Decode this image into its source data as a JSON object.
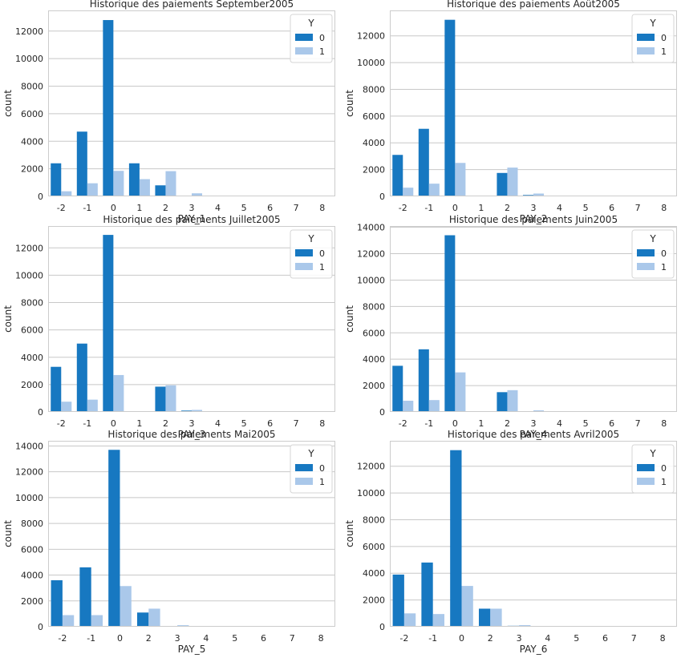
{
  "colors": {
    "class0": "#1778c1",
    "class1": "#aac8ea",
    "grid": "#c8c8c8",
    "frame": "#cccccc"
  },
  "chart_data": [
    {
      "type": "bar",
      "title": "Historique des paiements September2005",
      "xlabel": "PAY_1",
      "ylabel": "count",
      "categories": [
        "-2",
        "-1",
        "0",
        "1",
        "2",
        "3",
        "4",
        "5",
        "6",
        "7",
        "8"
      ],
      "series": [
        {
          "name": "0",
          "values": [
            2400,
            4700,
            12800,
            2400,
            800,
            30,
            10,
            5,
            5,
            5,
            5
          ]
        },
        {
          "name": "1",
          "values": [
            370,
            950,
            1850,
            1250,
            1830,
            220,
            50,
            10,
            5,
            5,
            5
          ]
        }
      ],
      "ylim": [
        0,
        13500
      ],
      "yticks": [
        0,
        2000,
        4000,
        6000,
        8000,
        10000,
        12000
      ],
      "legend": {
        "title": "Y",
        "position": "top-right"
      }
    },
    {
      "type": "bar",
      "title": "Historique des paiements Août2005",
      "xlabel": "PAY_2",
      "ylabel": "count",
      "categories": [
        "-2",
        "-1",
        "0",
        "1",
        "2",
        "3",
        "4",
        "5",
        "6",
        "7",
        "8"
      ],
      "series": [
        {
          "name": "0",
          "values": [
            3100,
            5050,
            13200,
            20,
            1750,
            100,
            30,
            10,
            5,
            5,
            5
          ]
        },
        {
          "name": "1",
          "values": [
            650,
            950,
            2500,
            5,
            2150,
            210,
            50,
            15,
            5,
            5,
            5
          ]
        }
      ],
      "ylim": [
        0,
        13900
      ],
      "yticks": [
        0,
        2000,
        4000,
        6000,
        8000,
        10000,
        12000
      ],
      "legend": {
        "title": "Y",
        "position": "top-right"
      }
    },
    {
      "type": "bar",
      "title": "Historique des paiements Juillet2005",
      "xlabel": "PAY_3",
      "ylabel": "count",
      "categories": [
        "-2",
        "-1",
        "0",
        "1",
        "2",
        "3",
        "4",
        "5",
        "6",
        "7",
        "8"
      ],
      "series": [
        {
          "name": "0",
          "values": [
            3300,
            5000,
            12950,
            3,
            1850,
            100,
            30,
            10,
            10,
            5,
            5
          ]
        },
        {
          "name": "1",
          "values": [
            750,
            900,
            2700,
            2,
            1950,
            150,
            50,
            10,
            10,
            15,
            5
          ]
        }
      ],
      "ylim": [
        0,
        13600
      ],
      "yticks": [
        0,
        2000,
        4000,
        6000,
        8000,
        10000,
        12000
      ],
      "legend": {
        "title": "Y",
        "position": "top-right"
      }
    },
    {
      "type": "bar",
      "title": "Historique des paiements Juin2005",
      "xlabel": "PAY_4",
      "ylabel": "count",
      "categories": [
        "-2",
        "-1",
        "0",
        "1",
        "2",
        "3",
        "4",
        "5",
        "6",
        "7",
        "8"
      ],
      "series": [
        {
          "name": "0",
          "values": [
            3500,
            4750,
            13400,
            1,
            1500,
            60,
            30,
            20,
            5,
            5,
            2
          ]
        },
        {
          "name": "1",
          "values": [
            850,
            900,
            3000,
            1,
            1650,
            120,
            40,
            20,
            5,
            50,
            2
          ]
        }
      ],
      "ylim": [
        0,
        14100
      ],
      "yticks": [
        0,
        2000,
        4000,
        6000,
        8000,
        10000,
        12000,
        14000
      ],
      "legend": {
        "title": "Y",
        "position": "top-right"
      }
    },
    {
      "type": "bar",
      "title": "Historique des paiements Mai2005",
      "xlabel": "PAY_5",
      "ylabel": "count",
      "categories": [
        "-2",
        "-1",
        "0",
        "2",
        "3",
        "4",
        "5",
        "6",
        "7",
        "8"
      ],
      "series": [
        {
          "name": "0",
          "values": [
            3600,
            4600,
            13700,
            1100,
            60,
            30,
            10,
            3,
            20,
            1
          ]
        },
        {
          "name": "1",
          "values": [
            900,
            900,
            3150,
            1400,
            120,
            50,
            10,
            1,
            40,
            1
          ]
        }
      ],
      "ylim": [
        0,
        14400
      ],
      "yticks": [
        0,
        2000,
        4000,
        6000,
        8000,
        10000,
        12000,
        14000
      ],
      "legend": {
        "title": "Y",
        "position": "top-right"
      }
    },
    {
      "type": "bar",
      "title": "Historique des paiements Avril2005",
      "xlabel": "PAY_6",
      "ylabel": "count",
      "categories": [
        "-2",
        "-1",
        "0",
        "2",
        "3",
        "4",
        "5",
        "6",
        "7",
        "8"
      ],
      "series": [
        {
          "name": "0",
          "values": [
            3900,
            4800,
            13200,
            1350,
            70,
            20,
            5,
            10,
            20,
            1
          ]
        },
        {
          "name": "1",
          "values": [
            1000,
            950,
            3050,
            1350,
            120,
            30,
            10,
            10,
            30,
            1
          ]
        }
      ],
      "ylim": [
        0,
        13900
      ],
      "yticks": [
        0,
        2000,
        4000,
        6000,
        8000,
        10000,
        12000
      ],
      "legend": {
        "title": "Y",
        "position": "top-right"
      }
    }
  ]
}
